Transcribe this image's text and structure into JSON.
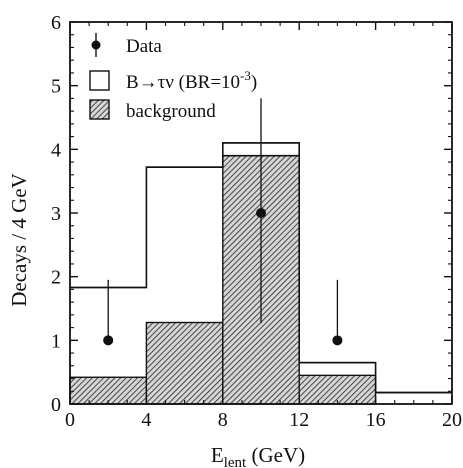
{
  "chart_data": {
    "type": "histogram",
    "xlabel_main": "E",
    "xlabel_sub": "lent",
    "xlabel_unit": " (GeV)",
    "ylabel": "Decays / 4 GeV",
    "xlim": [
      0,
      20
    ],
    "ylim": [
      0,
      6
    ],
    "x_ticks": [
      "0",
      "4",
      "8",
      "12",
      "16",
      "20"
    ],
    "y_ticks": [
      "0",
      "1",
      "2",
      "3",
      "4",
      "5",
      "6"
    ],
    "bin_edges": [
      0,
      4,
      8,
      12,
      16,
      20
    ],
    "background": [
      0.42,
      1.28,
      3.9,
      0.45,
      0.0
    ],
    "signal_total": [
      1.83,
      3.72,
      4.1,
      0.65,
      0.18
    ],
    "data": {
      "x": [
        2,
        10,
        14
      ],
      "y": [
        1,
        3,
        1
      ],
      "err_low": [
        0,
        1.73,
        0
      ],
      "err_high": [
        0.95,
        1.8,
        0.95
      ]
    },
    "legend": {
      "data_label": "Data",
      "signal_label_main": "B→τν (BR=10",
      "signal_label_exp": "-3",
      "signal_label_end": ")",
      "background_label": "background"
    },
    "colors": {
      "line": "#111111",
      "hatch": "#222222"
    },
    "legend_position": "top-left"
  }
}
